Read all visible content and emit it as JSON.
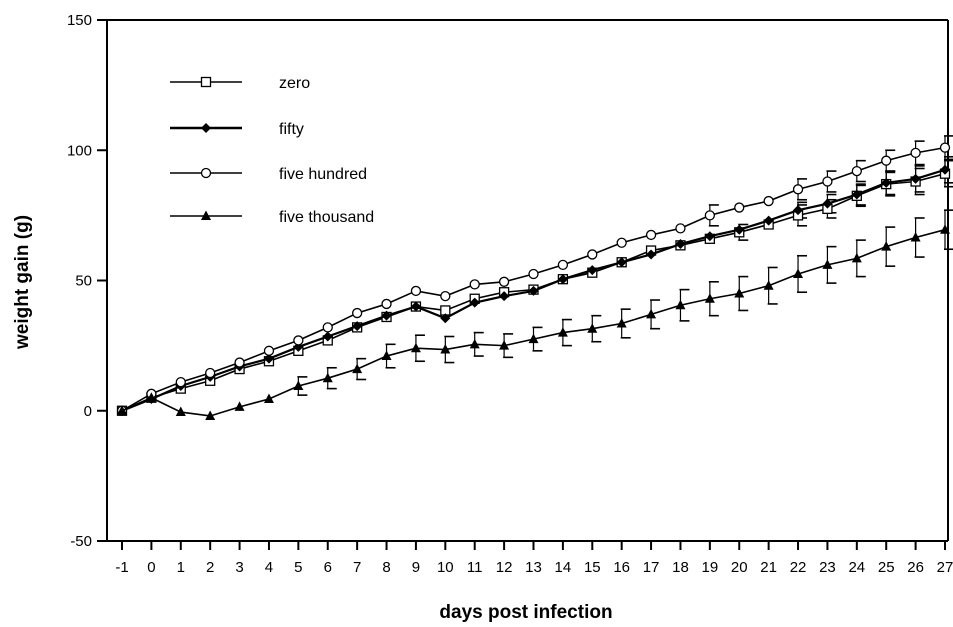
{
  "chart_data": {
    "type": "line",
    "title": "",
    "xlabel": "days post infection",
    "ylabel": "weight gain (g)",
    "x": [
      -1,
      0,
      1,
      2,
      3,
      4,
      5,
      6,
      7,
      8,
      9,
      10,
      11,
      12,
      13,
      14,
      15,
      16,
      17,
      18,
      19,
      20,
      21,
      22,
      23,
      24,
      25,
      26,
      27
    ],
    "x_tick_labels": [
      "-1",
      "0",
      "1",
      "2",
      "3",
      "4",
      "5",
      "6",
      "7",
      "8",
      "9",
      "10",
      "11",
      "12",
      "13",
      "14",
      "15",
      "16",
      "17",
      "18",
      "19",
      "20",
      "21",
      "22",
      "23",
      "24",
      "25",
      "26",
      "27"
    ],
    "xlim": [
      -1,
      27
    ],
    "ylim": [
      -50,
      150
    ],
    "y_ticks": [
      150,
      100,
      50,
      0,
      -50
    ],
    "y_tick_labels": [
      "150",
      "100",
      "50",
      "0",
      "-50"
    ],
    "grid": false,
    "legend": "top-left",
    "colors": {
      "line": "#000000",
      "background": "#ffffff"
    },
    "series": [
      {
        "name": "zero",
        "marker": "open-square",
        "values": [
          0,
          5,
          8.5,
          11.5,
          16,
          19,
          23,
          27,
          32,
          36,
          40,
          38.5,
          43,
          45.5,
          46.5,
          50.5,
          53,
          57,
          61.5,
          63.5,
          66,
          68.5,
          71.5,
          75,
          77.5,
          82.5,
          87,
          88,
          91
        ],
        "error": [
          0,
          0,
          0,
          0,
          0,
          0,
          0,
          0,
          0,
          0,
          0,
          0,
          0,
          0,
          0,
          0,
          0,
          0,
          0,
          0,
          0,
          3,
          0,
          4,
          3.5,
          4,
          4.5,
          5,
          5
        ]
      },
      {
        "name": "fifty",
        "marker": "filled-diamond",
        "values": [
          0,
          4.5,
          9.5,
          13,
          17,
          20,
          24.5,
          28.5,
          32.5,
          36.5,
          40,
          35.5,
          41.5,
          44,
          46,
          50.5,
          54,
          57,
          60,
          64,
          67,
          69.5,
          73,
          77,
          79.5,
          83,
          87.5,
          89,
          92.5
        ],
        "error": [
          0,
          0,
          0,
          0,
          0,
          0,
          0,
          0,
          0,
          0,
          0,
          0,
          0,
          0,
          0,
          0,
          0,
          0,
          0,
          0,
          0,
          0,
          0,
          3,
          3.5,
          4,
          4.5,
          5,
          5
        ]
      },
      {
        "name": "five hundred",
        "marker": "open-circle",
        "values": [
          0,
          6.5,
          11,
          14.5,
          18.5,
          23,
          27,
          32,
          37.5,
          41,
          46,
          44,
          48.5,
          49.5,
          52.5,
          56,
          60,
          64.5,
          67.5,
          70,
          75,
          78,
          80.5,
          85,
          88,
          92,
          96,
          99,
          101
        ],
        "error": [
          0,
          0,
          0,
          0,
          0,
          0,
          0,
          0,
          0,
          0,
          0,
          0,
          0,
          0,
          0,
          0,
          0,
          0,
          0,
          0,
          4,
          0,
          0,
          4,
          4,
          4,
          4,
          4.5,
          4.5
        ]
      },
      {
        "name": "five thousand",
        "marker": "filled-triangle",
        "values": [
          0,
          5,
          -0.5,
          -2,
          1.5,
          4.5,
          9.5,
          12.5,
          16,
          21,
          24,
          23.5,
          25.5,
          25,
          27.5,
          30,
          31.5,
          33.5,
          37,
          40.5,
          43,
          45,
          48,
          52.5,
          56,
          58.5,
          63,
          66.5,
          69.5
        ],
        "error": [
          0,
          0,
          0,
          0,
          0,
          0,
          3.5,
          4,
          4,
          4.5,
          5,
          5,
          4.5,
          4.5,
          4.5,
          5,
          5,
          5.5,
          5.5,
          6,
          6.5,
          6.5,
          7,
          7,
          7,
          7,
          7.5,
          7.5,
          7.5
        ]
      }
    ]
  }
}
